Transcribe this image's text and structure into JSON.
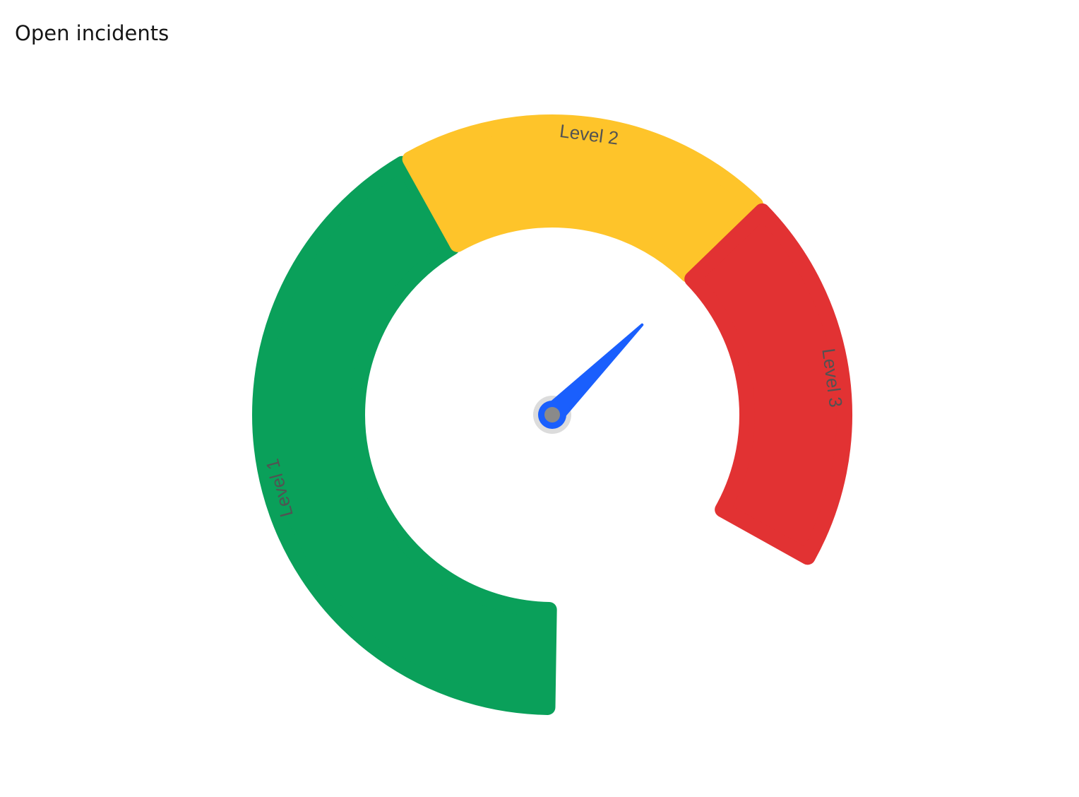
{
  "title": "Open incidents",
  "chart_data": {
    "type": "gauge",
    "title": "Open incidents",
    "angle_start_deg": -180,
    "angle_end_deg": 120,
    "bands": [
      {
        "name": "Level 1",
        "color": "#0aa05a",
        "start_deg": -180,
        "end_deg": -30
      },
      {
        "name": "Level 2",
        "color": "#fec42a",
        "start_deg": -30,
        "end_deg": 45
      },
      {
        "name": "Level 3",
        "color": "#e23233",
        "start_deg": 45,
        "end_deg": 120
      }
    ],
    "needle": {
      "angle_deg": 45,
      "color": "#1a5ffd",
      "hub_color": "#8a8a8a",
      "hub_ring_color": "#dcdcdc"
    }
  }
}
